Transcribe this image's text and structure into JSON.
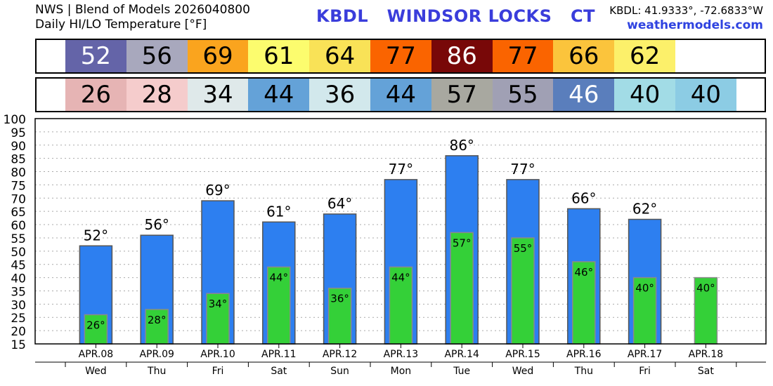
{
  "header": {
    "line1": "NWS | Blend of Models 2026040800",
    "line2": "Daily HI/LO Temperature [°F]",
    "title": "KBDL   WINDSOR LOCKS   CT",
    "coords": "KBDL: 41.9333°, -72.6833°W",
    "site": "weathermodels.com"
  },
  "hi_strip": [
    {
      "value": "52",
      "bg": "#6464a8",
      "fg": "#ffffff"
    },
    {
      "value": "56",
      "bg": "#a8a8bd",
      "fg": "#000000"
    },
    {
      "value": "69",
      "bg": "#faa41e",
      "fg": "#000000"
    },
    {
      "value": "61",
      "bg": "#fcfc6e",
      "fg": "#000000"
    },
    {
      "value": "64",
      "bg": "#f9e257",
      "fg": "#000000"
    },
    {
      "value": "77",
      "bg": "#fa6400",
      "fg": "#000000"
    },
    {
      "value": "86",
      "bg": "#780808",
      "fg": "#ffffff"
    },
    {
      "value": "77",
      "bg": "#fa6400",
      "fg": "#000000"
    },
    {
      "value": "66",
      "bg": "#fbc43c",
      "fg": "#000000"
    },
    {
      "value": "62",
      "bg": "#fcf06a",
      "fg": "#000000"
    }
  ],
  "lo_strip": [
    {
      "value": "26",
      "bg": "#e6b4b4",
      "fg": "#000000"
    },
    {
      "value": "28",
      "bg": "#f5cccc",
      "fg": "#000000"
    },
    {
      "value": "34",
      "bg": "#dfe9ea",
      "fg": "#000000"
    },
    {
      "value": "44",
      "bg": "#64a2d8",
      "fg": "#000000"
    },
    {
      "value": "36",
      "bg": "#d2e8ec",
      "fg": "#000000"
    },
    {
      "value": "44",
      "bg": "#64a2d8",
      "fg": "#000000"
    },
    {
      "value": "57",
      "bg": "#a8a8a0",
      "fg": "#000000"
    },
    {
      "value": "55",
      "bg": "#a0a0b4",
      "fg": "#000000"
    },
    {
      "value": "46",
      "bg": "#5a7ebc",
      "fg": "#ffffff"
    },
    {
      "value": "40",
      "bg": "#a2dce6",
      "fg": "#000000"
    },
    {
      "value": "40",
      "bg": "#8ccce4",
      "fg": "#000000"
    }
  ],
  "chart_data": {
    "type": "bar",
    "title": "Daily HI/LO Temperature [°F]",
    "ylim": [
      15,
      100
    ],
    "yticks": [
      15,
      20,
      25,
      30,
      35,
      40,
      45,
      50,
      55,
      60,
      65,
      70,
      75,
      80,
      85,
      90,
      95,
      100
    ],
    "grid": true,
    "categories": [
      "APR.08",
      "APR.09",
      "APR.10",
      "APR.11",
      "APR.12",
      "APR.13",
      "APR.14",
      "APR.15",
      "APR.16",
      "APR.17",
      "APR.18"
    ],
    "weekdays": [
      "Wed",
      "Thu",
      "Fri",
      "Sat",
      "Sun",
      "Mon",
      "Tue",
      "Wed",
      "Thu",
      "Fri",
      "Sat"
    ],
    "series": [
      {
        "name": "HI",
        "color": "#2d7ff0",
        "values": [
          52,
          56,
          69,
          61,
          64,
          77,
          86,
          77,
          66,
          62,
          null
        ]
      },
      {
        "name": "LO",
        "color": "#34d038",
        "values": [
          26,
          28,
          34,
          44,
          36,
          44,
          57,
          55,
          46,
          40,
          40
        ]
      }
    ],
    "hi_labels": [
      "52°",
      "56°",
      "69°",
      "61°",
      "64°",
      "77°",
      "86°",
      "77°",
      "66°",
      "62°",
      ""
    ],
    "lo_labels": [
      "26°",
      "28°",
      "34°",
      "44°",
      "36°",
      "44°",
      "57°",
      "55°",
      "46°",
      "40°",
      "40°"
    ]
  }
}
